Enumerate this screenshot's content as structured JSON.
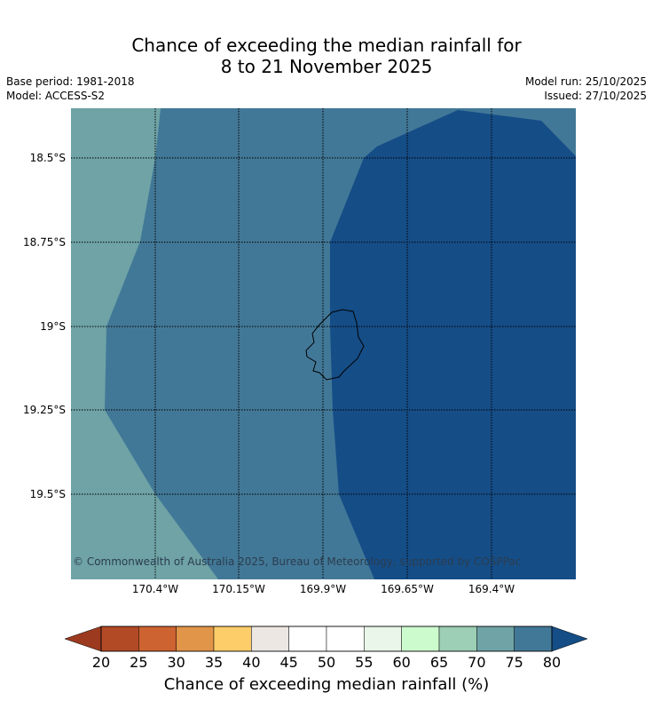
{
  "title_line1": "Chance of exceeding the median rainfall for",
  "title_line2": "8 to 21 November 2025",
  "base_period": "Base period: 1981-2018",
  "model": "Model: ACCESS-S2",
  "model_run": "Model run: 25/10/2025",
  "issued": "Issued: 27/10/2025",
  "copyright": "© Commonwealth of Australia 2025, Bureau of Meteorology, supported by COSPPac",
  "latitude_labels": [
    "18.5°S",
    "18.75°S",
    "19°S",
    "19.25°S",
    "19.5°S"
  ],
  "longitude_labels": [
    "170.4°W",
    "170.15°W",
    "169.9°W",
    "169.65°W",
    "169.4°W"
  ],
  "colorbar": {
    "label": "Chance of exceeding median rainfall (%)",
    "ticks": [
      "20",
      "25",
      "30",
      "35",
      "40",
      "45",
      "50",
      "55",
      "60",
      "65",
      "70",
      "75",
      "80"
    ],
    "under_color": "#9b3a1f",
    "over_color": "#154d87",
    "bin_colors": [
      "#b34a26",
      "#cd6331",
      "#e19548",
      "#fdcd6a",
      "#ece7e3",
      "#ffffff",
      "#ffffff",
      "#eaf6ea",
      "#ccfcce",
      "#9ccfb5",
      "#6fa3a6",
      "#427897"
    ]
  },
  "map_colors": {
    "band_70_75": "#6fa3a6",
    "band_75_80": "#427897",
    "band_above_80": "#154d87"
  }
}
